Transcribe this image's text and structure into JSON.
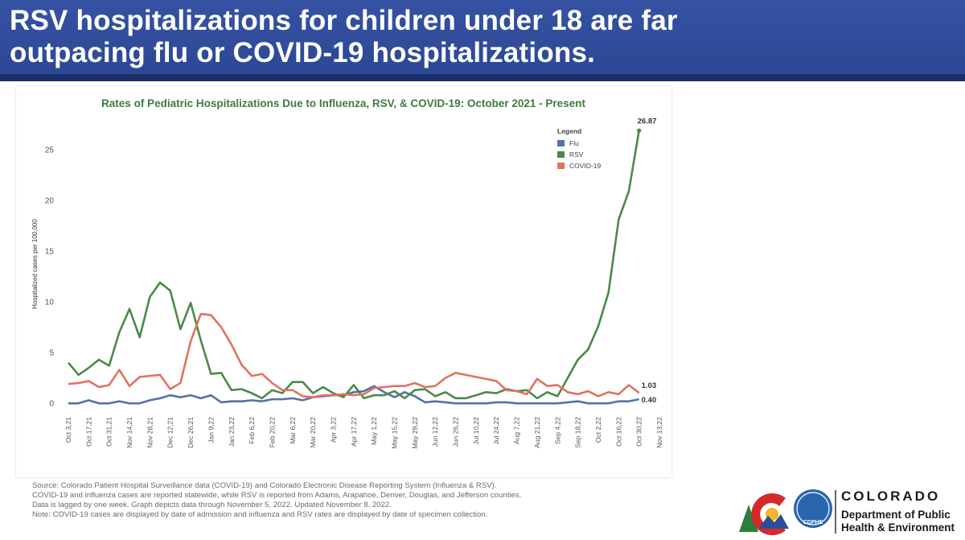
{
  "header": {
    "title_lines": [
      "RSV hospitalizations for children under 18 are far",
      "outpacing flu or COVID-19 hospitalizations."
    ]
  },
  "chart_data": {
    "type": "line",
    "title": "Rates of Pediatric Hospitalizations Due to Influenza, RSV, & COVID-19: October 2021 - Present",
    "y_label": "Hospitalized cases per 100,000",
    "categories": [
      "Oct 3,21",
      null,
      "Oct 17,21",
      null,
      "Oct 31,21",
      null,
      "Nov 14,21",
      null,
      "Nov 28,21",
      null,
      "Dec 12,21",
      null,
      "Dec 26,21",
      null,
      "Jan 9,22",
      null,
      "Jan 23,22",
      null,
      "Feb 6,22",
      null,
      "Feb 20,22",
      null,
      "Mar 6,22",
      null,
      "Mar 20,22",
      null,
      "Apr 3,22",
      null,
      "Apr 17,22",
      null,
      "May 1,22",
      null,
      "May 15,22",
      null,
      "May 29,22",
      null,
      "Jun 12,22",
      null,
      "Jun 26,22",
      null,
      "Jul 10,22",
      null,
      "Jul 24,22",
      null,
      "Aug 7,22",
      null,
      "Aug 21,22",
      null,
      "Sep 4,22",
      null,
      "Sep 18,22",
      null,
      "Oct 2,22",
      null,
      "Oct 16,22",
      null,
      "Oct 30,22",
      null,
      "Nov 13,22"
    ],
    "series": [
      {
        "name": "Flu",
        "color": "#5572a8",
        "values": [
          0.0,
          0.0,
          0.3,
          0.0,
          0.0,
          0.2,
          0.0,
          0.0,
          0.3,
          0.5,
          0.8,
          0.6,
          0.8,
          0.5,
          0.8,
          0.1,
          0.2,
          0.2,
          0.3,
          0.2,
          0.4,
          0.4,
          0.5,
          0.3,
          0.6,
          0.7,
          0.8,
          0.8,
          1.1,
          1.2,
          1.7,
          1.1,
          0.6,
          1.1,
          0.7,
          0.1,
          0.2,
          0.1,
          0.0,
          0.0,
          0.0,
          0.0,
          0.1,
          0.1,
          0.0,
          0.0,
          0.0,
          0.0,
          0.0,
          0.1,
          0.2,
          0.0,
          0.0,
          0.0,
          0.2,
          0.2,
          0.4,
          null,
          null
        ],
        "value_labels": [
          null,
          null,
          null,
          null,
          null,
          null,
          null,
          null,
          null,
          null,
          null,
          null,
          null,
          null,
          null,
          null,
          null,
          null,
          null,
          null,
          null,
          null,
          null,
          null,
          null,
          null,
          null,
          null,
          null,
          null,
          null,
          null,
          null,
          null,
          null,
          null,
          null,
          null,
          null,
          null,
          null,
          null,
          null,
          null,
          null,
          null,
          null,
          null,
          null,
          null,
          null,
          null,
          null,
          null,
          null,
          null,
          "0.40",
          null,
          null
        ]
      },
      {
        "name": "RSV",
        "color": "#4b8a47",
        "values": [
          4.0,
          2.8,
          3.5,
          4.3,
          3.7,
          7.0,
          9.3,
          6.5,
          10.5,
          11.9,
          11.1,
          7.3,
          9.9,
          6.2,
          2.9,
          3.0,
          1.3,
          1.4,
          1.0,
          0.5,
          1.3,
          1.0,
          2.1,
          2.1,
          1.0,
          1.6,
          1.0,
          0.6,
          1.8,
          0.5,
          0.8,
          0.8,
          1.2,
          0.5,
          1.3,
          1.4,
          0.7,
          1.1,
          0.5,
          0.5,
          0.8,
          1.1,
          1.0,
          1.4,
          1.2,
          1.3,
          0.5,
          1.1,
          0.7,
          2.5,
          4.3,
          5.3,
          7.6,
          10.9,
          18.1,
          20.9,
          26.87,
          null,
          null
        ],
        "value_labels": [
          null,
          null,
          null,
          null,
          null,
          null,
          null,
          null,
          null,
          null,
          null,
          null,
          null,
          null,
          null,
          null,
          null,
          null,
          null,
          null,
          null,
          null,
          null,
          null,
          null,
          null,
          null,
          null,
          null,
          null,
          null,
          null,
          null,
          null,
          null,
          null,
          null,
          null,
          null,
          null,
          null,
          null,
          null,
          null,
          null,
          null,
          null,
          null,
          null,
          null,
          null,
          null,
          null,
          null,
          null,
          null,
          "26.87",
          null,
          null
        ]
      },
      {
        "name": "COVID-19",
        "color": "#e0735f",
        "values": [
          1.9,
          2.0,
          2.2,
          1.6,
          1.8,
          3.3,
          1.7,
          2.6,
          2.7,
          2.8,
          1.4,
          2.0,
          6.1,
          8.8,
          8.7,
          7.5,
          5.8,
          3.8,
          2.7,
          2.9,
          2.0,
          1.3,
          1.3,
          0.7,
          0.6,
          0.8,
          0.8,
          0.9,
          0.8,
          0.9,
          1.5,
          1.6,
          1.7,
          1.7,
          2.0,
          1.6,
          1.7,
          2.5,
          3.0,
          2.8,
          2.6,
          2.4,
          2.2,
          1.3,
          1.2,
          0.9,
          2.4,
          1.7,
          1.8,
          1.1,
          0.9,
          1.2,
          0.7,
          1.1,
          0.9,
          1.8,
          1.03,
          null,
          null
        ],
        "value_labels": [
          null,
          null,
          null,
          null,
          null,
          null,
          null,
          null,
          null,
          null,
          null,
          null,
          null,
          null,
          null,
          null,
          null,
          null,
          null,
          null,
          null,
          null,
          null,
          null,
          null,
          null,
          null,
          null,
          null,
          null,
          null,
          null,
          null,
          null,
          null,
          null,
          null,
          null,
          null,
          null,
          null,
          null,
          null,
          null,
          null,
          null,
          null,
          null,
          null,
          null,
          null,
          null,
          null,
          null,
          null,
          null,
          "1.03",
          null,
          null
        ]
      }
    ],
    "ylim": [
      -0.7,
      28
    ],
    "yticks": [
      0,
      5,
      10,
      15,
      20,
      25
    ],
    "grid": false,
    "legend": {
      "title": "Legend",
      "position": "top-right"
    },
    "endpoint_marker": "RSV"
  },
  "notes": [
    "Source: Colorado Patient Hospital Surveillance data (COVID-19) and Colorado Electronic Disease Reporting System (Influenza & RSV).",
    "COVID-19 and influenza cases are reported statewide, while RSV is reported from Adams, Arapahoe, Denver, Douglas, and Jefferson counties.",
    "Data is lagged by one week. Graph depicts data through November 5, 2022. Updated November 8, 2022.",
    "Note: COVID-19 cases are displayed by date of admission and influenza and RSV rates are displayed by date of specimen collection."
  ],
  "logo": {
    "badge": "CDPHE",
    "name": "COLORADO",
    "lines": [
      "Department of Public",
      "Health & Environment"
    ]
  }
}
